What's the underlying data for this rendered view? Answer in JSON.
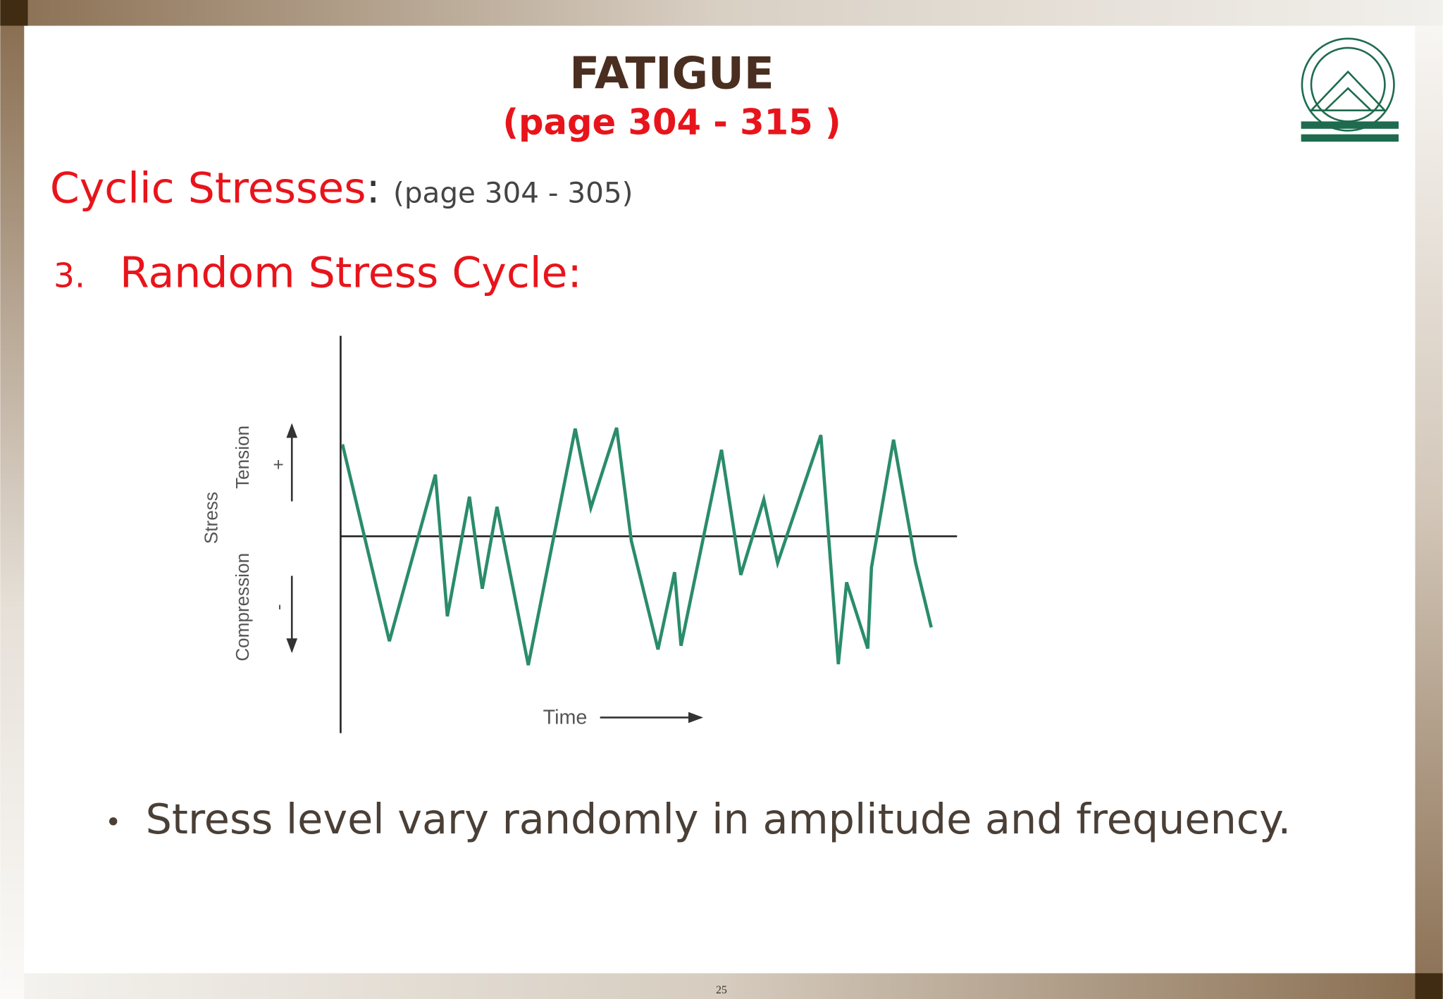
{
  "header": {
    "title": "FATIGUE",
    "subtitle": "(page 304 - 315 )"
  },
  "heading": {
    "label": "Cyclic Stresses",
    "separator": ":",
    "pages": "(page 304 - 305)"
  },
  "section": {
    "number": "3.",
    "title": "Random Stress Cycle:"
  },
  "figure": {
    "y_axis_label": "Stress",
    "upper_label": "Tension",
    "lower_label": "Compression",
    "plus": "+",
    "minus": "-",
    "x_axis_label": "Time"
  },
  "bullets": [
    "Stress level vary randomly in amplitude and frequency."
  ],
  "footer": {
    "page_number": "25"
  }
}
